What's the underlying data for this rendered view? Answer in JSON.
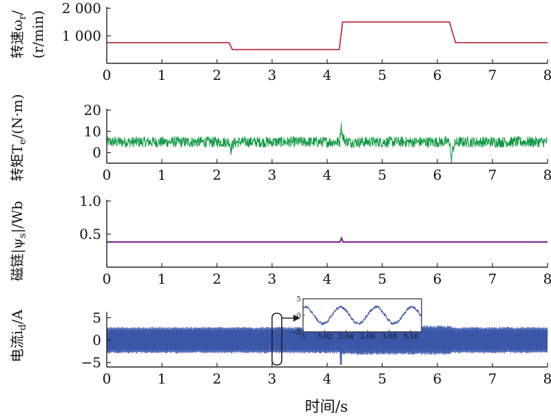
{
  "chart_data": [
    {
      "type": "line",
      "ylabel_main": "转速ω",
      "ylabel_sub": "r",
      "ylabel_unit": "(r/min)",
      "xlim": [
        0,
        8
      ],
      "ylim": [
        0,
        2000
      ],
      "x_ticks": [
        "0",
        "1",
        "2",
        "3",
        "4",
        "5",
        "6",
        "7",
        "8"
      ],
      "y_ticks": [
        "1 000",
        "2 000"
      ],
      "y_tick_values": [
        1000,
        2000
      ],
      "series": [
        {
          "color": "#c0303c",
          "x": [
            0,
            2.22,
            2.28,
            4.22,
            4.28,
            6.22,
            6.33,
            8
          ],
          "y": [
            750,
            750,
            500,
            500,
            1500,
            1500,
            750,
            750
          ]
        }
      ]
    },
    {
      "type": "line",
      "ylabel_main": "转矩T",
      "ylabel_sub": "e",
      "ylabel_unit": "/(N·m)",
      "xlim": [
        0,
        8
      ],
      "ylim": [
        -5,
        20
      ],
      "x_ticks": [
        "0",
        "1",
        "2",
        "3",
        "4",
        "5",
        "6",
        "7",
        "8"
      ],
      "y_ticks": [
        "0",
        "10",
        "20"
      ],
      "y_tick_values": [
        0,
        10,
        20
      ],
      "series": [
        {
          "color": "#119944",
          "mean": 5,
          "band": 2.6,
          "events": [
            {
              "x": 2.25,
              "y": 1
            },
            {
              "x": 4.25,
              "y": 14
            },
            {
              "x": 6.25,
              "y": -5
            }
          ]
        }
      ]
    },
    {
      "type": "line",
      "ylabel_main": "磁链|ψ",
      "ylabel_sub": "s",
      "ylabel_unit": "|/Wb",
      "xlim": [
        0,
        8
      ],
      "ylim": [
        0,
        1.0
      ],
      "x_ticks": [
        "0",
        "1",
        "2",
        "3",
        "4",
        "5",
        "6",
        "7",
        "8"
      ],
      "y_ticks": [
        "0.5",
        "1.0"
      ],
      "y_tick_values": [
        0.5,
        1.0
      ],
      "series": [
        {
          "color": "#7a2a8c",
          "x": [
            0,
            4.23,
            4.26,
            4.29,
            8
          ],
          "y": [
            0.38,
            0.38,
            0.44,
            0.38,
            0.38
          ]
        }
      ]
    },
    {
      "type": "line",
      "ylabel_main": "电流i",
      "ylabel_sub": "d",
      "ylabel_unit": "/A",
      "xlabel": "时间/s",
      "xlim": [
        0,
        8
      ],
      "ylim": [
        -6,
        6
      ],
      "x_ticks": [
        "0",
        "1",
        "2",
        "3",
        "4",
        "5",
        "6",
        "7",
        "8"
      ],
      "y_ticks": [
        "−5",
        "0",
        "5"
      ],
      "y_tick_values": [
        -5,
        0,
        5
      ],
      "series": [
        {
          "color": "#3a56a8",
          "amplitude": 3,
          "segments": [
            {
              "x0": 0,
              "x1": 4.25,
              "amp": 3
            },
            {
              "x0": 4.25,
              "x1": 6.25,
              "amp": 3.3
            },
            {
              "x0": 6.25,
              "x1": 8,
              "amp": 3
            }
          ]
        }
      ],
      "inset": {
        "type": "line",
        "xlim": [
          3.0,
          3.11
        ],
        "ylim": [
          -5,
          5
        ],
        "x_ticks": [
          "3",
          "3.02",
          "3.04",
          "3.06",
          "3.08",
          "3.10"
        ],
        "x_tick_values": [
          3.0,
          3.02,
          3.04,
          3.06,
          3.08,
          3.1
        ],
        "y_ticks": [
          "−5",
          "0",
          "5"
        ],
        "y_tick_values": [
          -5,
          0,
          5
        ],
        "series": [
          {
            "color": "#3a56a8",
            "period": 0.033,
            "amplitude": 2.5
          }
        ]
      }
    }
  ]
}
